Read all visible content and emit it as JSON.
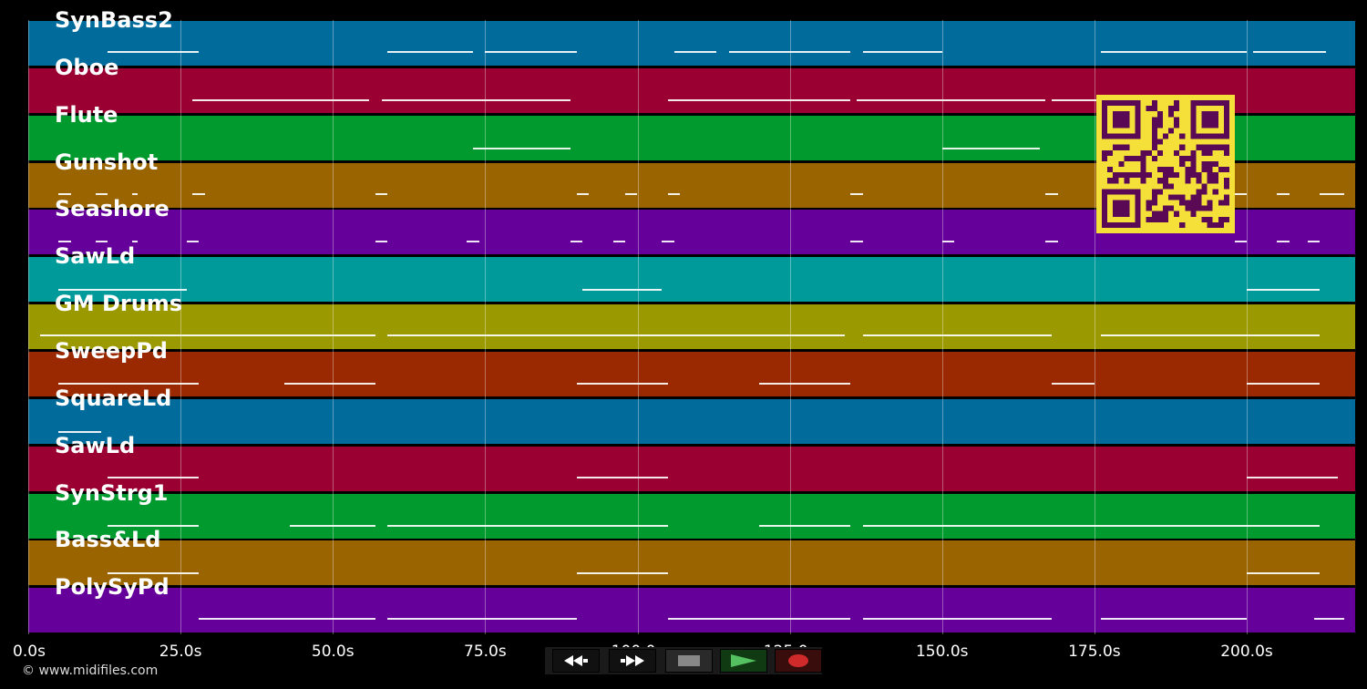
{
  "tracks": [
    {
      "name": "SynBass2",
      "color": "#016c9c"
    },
    {
      "name": "Oboe",
      "color": "#9a0032"
    },
    {
      "name": "Flute",
      "color": "#009a2e"
    },
    {
      "name": "Gunshot",
      "color": "#9a6400"
    },
    {
      "name": "Seashore",
      "color": "#66009a"
    },
    {
      "name": "SawLd",
      "color": "#009a9a"
    },
    {
      "name": "GM Drums",
      "color": "#9a9a00"
    },
    {
      "name": "SweepPd",
      "color": "#9a2800"
    },
    {
      "name": "SquareLd",
      "color": "#016c9c"
    },
    {
      "name": "SawLd",
      "color": "#9a0032"
    },
    {
      "name": "SynStrg1",
      "color": "#009a2e"
    },
    {
      "name": "Bass&Ld",
      "color": "#9a6400"
    },
    {
      "name": "PolySyPd",
      "color": "#66009a"
    }
  ],
  "timeline": {
    "max_seconds": 218,
    "ticks": [
      {
        "value": 0,
        "label": "0.0s"
      },
      {
        "value": 25,
        "label": "25.0s"
      },
      {
        "value": 50,
        "label": "50.0s"
      },
      {
        "value": 75,
        "label": "75.0s"
      },
      {
        "value": 100,
        "label": "100.0s"
      },
      {
        "value": 125,
        "label": "125.0s"
      },
      {
        "value": 150,
        "label": "150.0s"
      },
      {
        "value": 175,
        "label": "175.0s"
      },
      {
        "value": 200,
        "label": "200.0s"
      }
    ]
  },
  "copyright": "© www.midifiles.com",
  "transport": {
    "buttons": [
      "rewind",
      "fast-forward",
      "stop",
      "play",
      "record"
    ]
  },
  "qr_color": "#5a0a55",
  "qr_bg": "#f5e03a"
}
